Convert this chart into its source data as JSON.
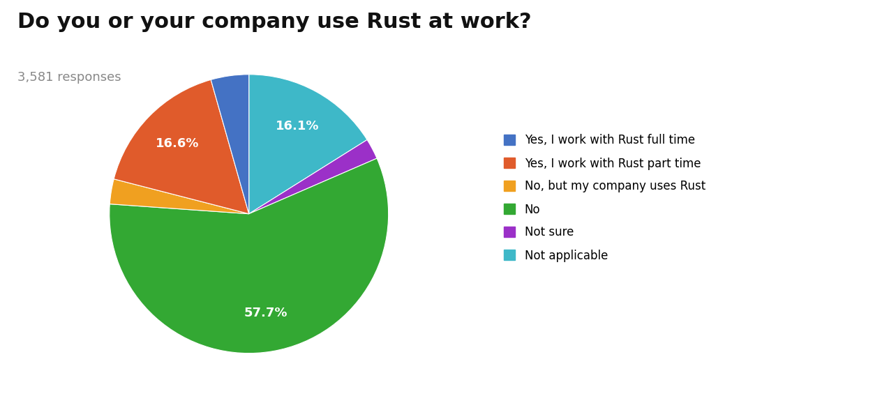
{
  "title": "Do you or your company use Rust at work?",
  "subtitle": "3,581 responses",
  "slices": [
    16.1,
    2.4,
    57.7,
    2.9,
    16.6,
    4.4
  ],
  "colors": [
    "#3EB8C8",
    "#9B30C8",
    "#33A833",
    "#F0A020",
    "#E05B2B",
    "#4472C4"
  ],
  "autopct_labels": [
    "16.1%",
    "",
    "57.7%",
    "",
    "16.6%",
    ""
  ],
  "legend_labels": [
    "Yes, I work with Rust full time",
    "Yes, I work with Rust part time",
    "No, but my company uses Rust",
    "No",
    "Not sure",
    "Not applicable"
  ],
  "legend_colors": [
    "#4472C4",
    "#E05B2B",
    "#F0A020",
    "#33A833",
    "#9B30C8",
    "#3EB8C8"
  ],
  "background_color": "#ffffff",
  "title_fontsize": 22,
  "subtitle_fontsize": 13,
  "subtitle_color": "#888888",
  "startangle": 90,
  "pctdistance": 0.72
}
